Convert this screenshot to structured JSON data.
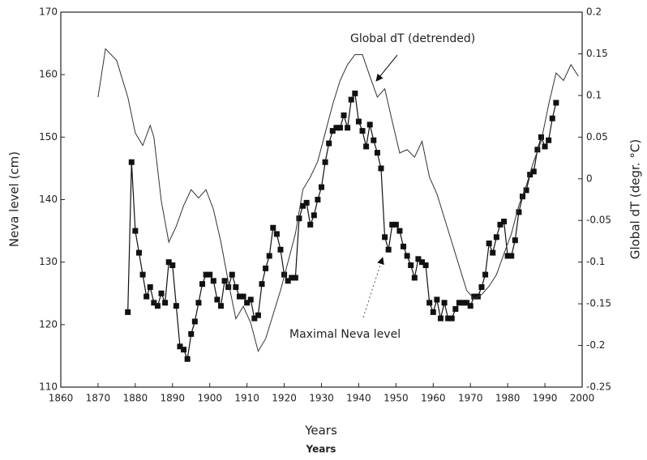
{
  "chart_data": {
    "type": "line",
    "xlabel": "Years",
    "caption": "Years",
    "ylabel": "Neva level (cm)",
    "y2label": "Global dT (degr. °C)",
    "annotations": [
      "Global dT (detrended)",
      "Maximal Neva level"
    ],
    "xlim": [
      1860,
      2000
    ],
    "xticks": [
      1860,
      1870,
      1880,
      1890,
      1900,
      1910,
      1920,
      1930,
      1940,
      1950,
      1960,
      1970,
      1980,
      1990,
      2000
    ],
    "ylim": [
      110,
      170
    ],
    "yticks": [
      110,
      120,
      130,
      140,
      150,
      160,
      170
    ],
    "y2lim": [
      -0.25,
      0.2
    ],
    "y2ticks": [
      -0.25,
      -0.2,
      -0.15,
      -0.1,
      -0.05,
      0,
      0.05,
      0.1,
      0.15,
      0.2
    ],
    "series": [
      {
        "name": "Maximal Neva level",
        "color": "#111",
        "marker": "square",
        "x": [
          1878,
          1879,
          1880,
          1881,
          1882,
          1883,
          1884,
          1885,
          1886,
          1887,
          1888,
          1889,
          1890,
          1891,
          1892,
          1893,
          1894,
          1895,
          1896,
          1897,
          1898,
          1899,
          1900,
          1901,
          1902,
          1903,
          1904,
          1905,
          1906,
          1907,
          1908,
          1909,
          1910,
          1911,
          1912,
          1913,
          1914,
          1915,
          1916,
          1917,
          1918,
          1919,
          1920,
          1921,
          1922,
          1923,
          1924,
          1925,
          1926,
          1927,
          1928,
          1929,
          1930,
          1931,
          1932,
          1933,
          1934,
          1935,
          1936,
          1937,
          1938,
          1939,
          1940,
          1941,
          1942,
          1943,
          1944,
          1945,
          1946,
          1947,
          1948,
          1949,
          1950,
          1951,
          1952,
          1953,
          1954,
          1955,
          1956,
          1957,
          1958,
          1959,
          1960,
          1961,
          1962,
          1963,
          1964,
          1965,
          1966,
          1967,
          1968,
          1969,
          1970,
          1971,
          1972,
          1973,
          1974,
          1975,
          1976,
          1977,
          1978,
          1979,
          1980,
          1981,
          1982,
          1983,
          1984,
          1985,
          1986,
          1987,
          1988,
          1989,
          1990,
          1991,
          1992,
          1993
        ],
        "values": [
          122,
          146,
          135,
          131.5,
          128,
          124.5,
          126,
          123.5,
          123,
          125,
          123.5,
          130,
          129.5,
          123,
          116.5,
          116,
          114.5,
          118.5,
          120.5,
          123.5,
          126.5,
          128,
          128,
          127,
          124,
          123,
          127,
          126,
          128,
          126,
          124.5,
          124.5,
          123.5,
          124,
          121,
          121.5,
          126.5,
          129,
          131,
          135.5,
          134.5,
          132,
          128,
          127,
          127.5,
          127.5,
          137,
          139,
          139.5,
          136,
          137.5,
          140,
          142,
          146,
          149,
          151,
          151.5,
          151.5,
          153.5,
          151.5,
          156,
          157,
          152.5,
          151,
          148.5,
          152,
          149.5,
          147.5,
          145,
          134,
          132,
          136,
          136,
          135,
          132.5,
          131,
          129.5,
          127.5,
          130.5,
          130,
          129.5,
          123.5,
          122,
          124,
          121,
          123.5,
          121,
          121,
          122.5,
          123.5,
          123.5,
          123.5,
          123,
          124.5,
          124.5,
          126,
          128,
          133,
          131.5,
          134,
          136,
          136.5,
          131,
          131,
          133.5,
          138,
          140.5,
          141.5,
          144,
          144.5,
          148,
          150,
          148.5,
          149.5,
          153,
          155.5
        ]
      },
      {
        "name": "Global dT (detrended)",
        "color": "#333",
        "axis": "y2",
        "x": [
          1870,
          1872,
          1875,
          1878,
          1880,
          1882,
          1884,
          1885,
          1887,
          1889,
          1891,
          1893,
          1895,
          1897,
          1899,
          1901,
          1903,
          1905,
          1907,
          1909,
          1911,
          1913,
          1915,
          1917,
          1919,
          1921,
          1923,
          1925,
          1927,
          1929,
          1931,
          1933,
          1935,
          1937,
          1939,
          1941,
          1943,
          1945,
          1947,
          1949,
          1951,
          1953,
          1955,
          1957,
          1959,
          1961,
          1963,
          1965,
          1967,
          1969,
          1971,
          1973,
          1975,
          1977,
          1979,
          1981,
          1983,
          1985,
          1987,
          1989,
          1991,
          1993,
          1995,
          1997,
          1999
        ],
        "values": [
          0.098,
          0.156,
          0.142,
          0.098,
          0.055,
          0.04,
          0.064,
          0.05,
          -0.027,
          -0.076,
          -0.057,
          -0.032,
          -0.013,
          -0.023,
          -0.013,
          -0.037,
          -0.076,
          -0.124,
          -0.168,
          -0.153,
          -0.173,
          -0.207,
          -0.192,
          -0.163,
          -0.134,
          -0.1,
          -0.066,
          -0.013,
          0.002,
          0.021,
          0.055,
          0.089,
          0.118,
          0.137,
          0.149,
          0.149,
          0.123,
          0.098,
          0.108,
          0.069,
          0.031,
          0.035,
          0.026,
          0.045,
          0.002,
          -0.018,
          -0.047,
          -0.076,
          -0.105,
          -0.134,
          -0.144,
          -0.139,
          -0.129,
          -0.115,
          -0.09,
          -0.066,
          -0.032,
          -0.008,
          0.021,
          0.045,
          0.089,
          0.127,
          0.118,
          0.137,
          0.123
        ]
      }
    ]
  }
}
